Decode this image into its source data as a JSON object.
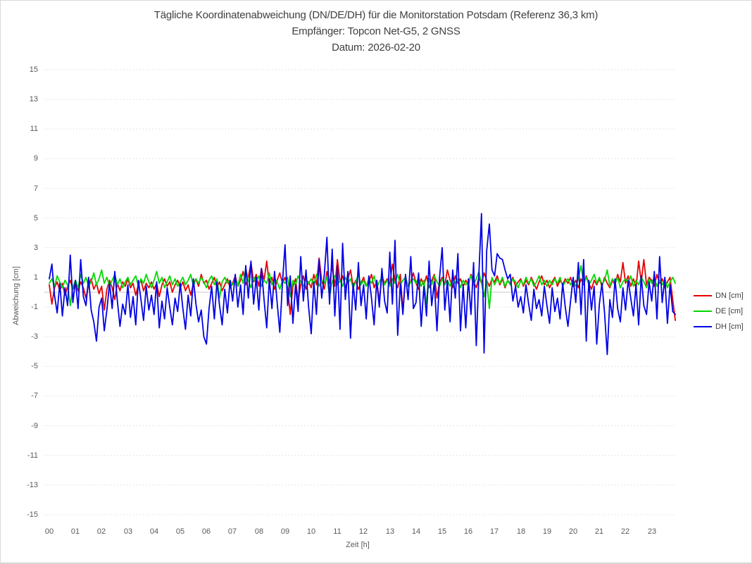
{
  "chart_data": {
    "type": "line",
    "title": "Tägliche Koordinatenabweichung (DN/DE/DH) für die Monitorstation Potsdam (Referenz 36,3 km)",
    "subtitle": "Empfänger: Topcon Net-G5, 2 GNSS",
    "date_line": "Datum: 2026-02-20",
    "xlabel": "Zeit [h]",
    "ylabel": "Abweichung [cm]",
    "xlim": [
      0,
      24
    ],
    "ylim": [
      -15,
      15
    ],
    "yticks": [
      15,
      13,
      11,
      9,
      7,
      5,
      3,
      1,
      -1,
      -3,
      -5,
      -7,
      -9,
      -11,
      -13,
      -15
    ],
    "xticks": [
      "00",
      "01",
      "02",
      "03",
      "04",
      "05",
      "06",
      "07",
      "08",
      "09",
      "10",
      "11",
      "12",
      "13",
      "14",
      "15",
      "16",
      "17",
      "18",
      "19",
      "20",
      "21",
      "22",
      "23"
    ],
    "x_step_hours": 0.1,
    "grid": "horizontal-dotted",
    "legend_position": "right-center",
    "colors": {
      "gridline": "#dcdcdc",
      "zero_axis": "#c9c9c9",
      "title_text": "#404040",
      "axis_text": "#595959",
      "border": "#d9d9d9"
    },
    "series": [
      {
        "name": "DN [cm]",
        "color": "#e60000",
        "values": [
          0.5,
          -0.8,
          0.3,
          0.7,
          0.1,
          0.6,
          -0.2,
          0.4,
          0.8,
          0.2,
          0.6,
          0.1,
          0.7,
          0.3,
          -0.4,
          0.5,
          0.9,
          0.2,
          0.6,
          -0.1,
          0.4,
          -1.2,
          0.2,
          0.8,
          0.3,
          -0.5,
          0.6,
          0.1,
          0.7,
          0.4,
          0.9,
          0.3,
          0.6,
          -0.2,
          0.5,
          0.8,
          0.1,
          0.6,
          0.3,
          0.7,
          0.2,
          0.6,
          -0.3,
          0.5,
          0.9,
          0.4,
          0.7,
          0.0,
          0.5,
          0.8,
          0.3,
          0.7,
          0.1,
          0.5,
          -0.2,
          0.6,
          0.9,
          0.4,
          1.2,
          0.6,
          0.8,
          0.2,
          0.6,
          1.0,
          0.3,
          0.7,
          0.1,
          0.5,
          0.9,
          0.3,
          0.6,
          1.1,
          0.4,
          0.8,
          1.4,
          0.5,
          1.0,
          2.0,
          0.7,
          1.2,
          0.4,
          1.6,
          0.8,
          2.1,
          0.5,
          1.0,
          0.2,
          0.8,
          1.3,
          0.6,
          1.0,
          0.3,
          -1.5,
          0.4,
          0.9,
          -0.6,
          0.5,
          1.1,
          0.2,
          0.7,
          0.3,
          1.2,
          0.5,
          2.3,
          0.8,
          0.2,
          1.4,
          0.6,
          1.8,
          0.4,
          2.2,
          0.7,
          1.1,
          0.3,
          0.9,
          1.5,
          0.4,
          0.8,
          0.2,
          0.6,
          1.0,
          0.4,
          0.7,
          1.2,
          0.3,
          0.8,
          -0.6,
          1.1,
          0.6,
          0.9,
          0.5,
          1.9,
          0.8,
          0.3,
          1.2,
          -1.3,
          1.0,
          0.4,
          0.7,
          1.3,
          0.6,
          0.2,
          0.9,
          0.5,
          1.1,
          0.3,
          0.8,
          1.2,
          -0.4,
          0.7,
          1.0,
          0.5,
          1.5,
          0.8,
          0.3,
          1.1,
          0.6,
          0.9,
          0.4,
          0.8,
          0.5,
          1.2,
          0.7,
          0.3,
          1.0,
          0.6,
          1.3,
          0.8,
          0.4,
          0.9,
          0.7,
          1.1,
          0.5,
          0.9,
          0.3,
          0.8,
          0.6,
          1.0,
          0.4,
          0.7,
          0.9,
          0.4,
          0.8,
          0.5,
          1.0,
          0.6,
          0.2,
          0.7,
          1.1,
          0.5,
          0.8,
          0.3,
          0.7,
          1.0,
          0.4,
          0.8,
          0.5,
          0.9,
          0.6,
          1.0,
          0.4,
          0.8,
          0.3,
          0.9,
          0.5,
          1.1,
          0.6,
          0.2,
          0.8,
          0.5,
          0.9,
          0.4,
          1.0,
          0.6,
          0.3,
          0.8,
          0.5,
          1.2,
          0.7,
          2.0,
          0.6,
          1.1,
          0.4,
          0.9,
          0.3,
          2.1,
          0.7,
          2.2,
          0.5,
          1.0,
          0.8,
          0.4,
          1.2,
          0.6,
          0.9,
          0.3,
          0.7,
          1.0,
          -0.5,
          -1.9
        ]
      },
      {
        "name": "DE [cm]",
        "color": "#00d800",
        "values": [
          0.6,
          0.9,
          0.4,
          1.1,
          0.7,
          0.3,
          0.8,
          0.5,
          -0.9,
          0.4,
          0.8,
          0.3,
          1.2,
          0.6,
          1.0,
          0.4,
          0.7,
          1.3,
          0.5,
          0.9,
          1.5,
          0.6,
          1.0,
          0.4,
          0.8,
          1.2,
          0.5,
          0.9,
          0.3,
          0.7,
          1.0,
          0.5,
          0.8,
          1.1,
          0.4,
          0.9,
          0.6,
          1.2,
          0.7,
          0.3,
          0.8,
          1.4,
          0.6,
          1.0,
          0.3,
          0.7,
          1.1,
          0.5,
          0.9,
          0.4,
          0.7,
          1.0,
          0.5,
          0.8,
          1.2,
          0.4,
          0.9,
          0.6,
          1.0,
          0.7,
          0.3,
          0.8,
          1.1,
          0.5,
          0.9,
          -0.4,
          0.7,
          1.0,
          0.6,
          0.8,
          0.5,
          0.9,
          0.4,
          1.2,
          0.6,
          1.6,
          0.8,
          0.3,
          1.0,
          0.6,
          1.1,
          0.4,
          0.8,
          0.6,
          1.3,
          0.5,
          0.9,
          0.7,
          0.2,
          0.8,
          0.6,
          1.0,
          -0.3,
          0.8,
          0.5,
          1.1,
          0.7,
          0.4,
          0.9,
          0.6,
          0.9,
          0.5,
          1.2,
          0.4,
          0.8,
          0.6,
          1.0,
          -0.3,
          0.7,
          1.1,
          0.5,
          0.8,
          0.4,
          1.0,
          0.6,
          0.9,
          0.3,
          0.7,
          1.2,
          0.5,
          0.8,
          0.4,
          0.9,
          0.6,
          1.1,
          0.3,
          0.7,
          1.0,
          0.5,
          0.8,
          0.4,
          0.9,
          0.6,
          1.2,
          0.5,
          0.8,
          1.0,
          0.4,
          0.7,
          0.9,
          0.6,
          1.0,
          0.4,
          0.8,
          -0.8,
          0.9,
          0.5,
          1.1,
          0.7,
          0.4,
          0.9,
          0.5,
          0.8,
          0.4,
          1.0,
          0.6,
          0.9,
          0.3,
          0.8,
          0.5,
          0.7,
          1.1,
          0.5,
          0.9,
          1.4,
          0.6,
          -0.3,
          0.8,
          -1.1,
          1.0,
          0.5,
          0.9,
          0.6,
          1.0,
          0.4,
          0.8,
          0.5,
          0.9,
          0.7,
          0.3,
          0.8,
          0.5,
          1.0,
          0.6,
          0.9,
          0.4,
          0.7,
          1.1,
          0.5,
          0.8,
          0.4,
          0.8,
          0.5,
          0.9,
          0.6,
          1.0,
          0.4,
          0.7,
          0.9,
          0.5,
          0.8,
          0.4,
          0.9,
          1.8,
          0.6,
          1.0,
          0.5,
          0.8,
          1.2,
          0.6,
          1.0,
          0.5,
          0.8,
          1.5,
          0.4,
          0.9,
          0.6,
          1.0,
          0.3,
          0.7,
          0.9,
          0.6,
          1.1,
          0.4,
          0.8,
          0.5,
          1.0,
          0.7,
          0.3,
          0.9,
          0.6,
          1.0,
          0.4,
          0.8,
          0.5,
          0.9,
          0.3,
          0.7,
          1.0,
          0.6
        ]
      },
      {
        "name": "DH [cm]",
        "color": "#0000e6",
        "values": [
          0.9,
          1.9,
          -0.2,
          -1.4,
          0.6,
          -1.6,
          0.3,
          -0.9,
          2.5,
          -0.7,
          0.8,
          -1.1,
          2.2,
          -0.3,
          -0.9,
          1.0,
          -1.2,
          -2.0,
          -3.3,
          -1.0,
          -0.4,
          -2.6,
          -1.2,
          0.6,
          -1.1,
          1.4,
          -0.6,
          -2.3,
          -0.8,
          -1.5,
          0.5,
          -1.7,
          -0.3,
          -2.2,
          0.8,
          -0.5,
          -1.9,
          0.4,
          -1.2,
          -0.2,
          -1.5,
          0.7,
          -2.4,
          -0.6,
          -1.8,
          0.3,
          -1.0,
          -2.2,
          -0.4,
          -1.3,
          0.6,
          -1.1,
          -2.5,
          -0.2,
          -1.6,
          0.9,
          -0.8,
          -2.0,
          -1.2,
          -3.0,
          -3.5,
          -1.1,
          0.4,
          -1.8,
          0.7,
          -0.9,
          -2.2,
          0.2,
          -1.4,
          0.8,
          -0.6,
          1.2,
          -1.0,
          0.5,
          -1.5,
          1.8,
          -0.4,
          2.1,
          -0.8,
          1.0,
          -1.2,
          1.6,
          -0.5,
          -2.4,
          0.9,
          -1.1,
          1.4,
          -0.7,
          -2.7,
          0.6,
          3.2,
          -0.9,
          1.1,
          -2.1,
          0.5,
          -1.3,
          2.4,
          -0.6,
          1.5,
          -1.0,
          -2.8,
          0.7,
          -1.5,
          2.2,
          -0.4,
          1.2,
          3.7,
          -0.8,
          2.9,
          -1.6,
          1.8,
          -2.5,
          3.3,
          -0.5,
          1.4,
          -3.1,
          0.6,
          -1.2,
          2.0,
          -0.9,
          0.5,
          -1.8,
          1.1,
          -0.4,
          -2.2,
          0.8,
          -1.0,
          1.6,
          -0.6,
          -1.4,
          2.7,
          -0.8,
          3.5,
          -2.9,
          0.6,
          -1.5,
          1.2,
          -0.5,
          2.4,
          -1.1,
          -0.7,
          1.3,
          -2.3,
          0.4,
          -1.6,
          2.1,
          -0.9,
          0.7,
          -2.6,
          1.0,
          3.0,
          -1.2,
          0.8,
          -2.0,
          1.5,
          -0.4,
          2.6,
          -2.6,
          0.5,
          -2.4,
          0.9,
          -1.5,
          2.0,
          -3.6,
          1.2,
          5.3,
          -4.1,
          2.8,
          4.6,
          1.5,
          1.1,
          2.6,
          2.3,
          2.2,
          1.5,
          0.9,
          1.2,
          -0.6,
          0.4,
          -1.0,
          -0.3,
          -1.4,
          0.5,
          -0.8,
          -1.9,
          0.2,
          -1.1,
          -0.5,
          -1.6,
          0.4,
          -0.9,
          -2.1,
          0.3,
          -1.3,
          -0.4,
          -1.8,
          0.6,
          -1.0,
          -2.3,
          -0.6,
          1.0,
          -0.7,
          2.0,
          -1.5,
          2.2,
          -3.3,
          0.8,
          -1.2,
          0.4,
          -3.5,
          -0.8,
          0.6,
          -1.4,
          -4.2,
          -0.5,
          -1.7,
          0.9,
          -1.1,
          -2.0,
          0.3,
          -1.2,
          0.8,
          -0.4,
          -1.6,
          0.5,
          -2.2,
          1.1,
          -0.9,
          -1.5,
          0.7,
          -0.6,
          1.4,
          -1.8,
          2.4,
          -0.7,
          1.0,
          -2.1,
          0.5,
          -1.3,
          -1.5
        ]
      }
    ]
  }
}
